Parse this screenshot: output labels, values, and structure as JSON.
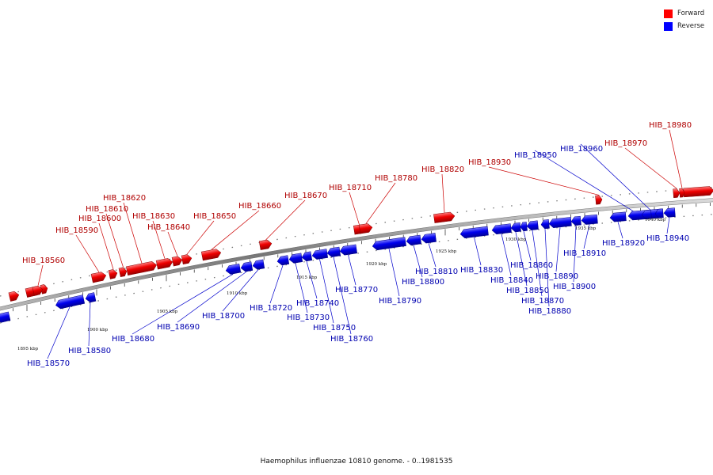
{
  "legend": [
    {
      "label": "Forward",
      "color": "#ff0000"
    },
    {
      "label": "Reverse",
      "color": "#0000ff"
    }
  ],
  "caption": "Haemophilus influenzae 10810 genome. - 0..1981535",
  "colors": {
    "forward": "#ff0000",
    "reverse": "#0000ff",
    "backbone": "#888888"
  },
  "ticks": [
    "1895 kbp",
    "1900 kbp",
    "1905 kbp",
    "1910 kbp",
    "1915 kbp",
    "1920 kbp",
    "1925 kbp",
    "1930 kbp",
    "1935 kbp",
    "1940 kbp"
  ],
  "genes": [
    {
      "label": "HIB_18560",
      "strand": "forward"
    },
    {
      "label": "HIB_18570",
      "strand": "reverse"
    },
    {
      "label": "HIB_18580",
      "strand": "reverse"
    },
    {
      "label": "HIB_18590",
      "strand": "forward"
    },
    {
      "label": "HIB_18600",
      "strand": "forward"
    },
    {
      "label": "HIB_18610",
      "strand": "forward"
    },
    {
      "label": "HIB_18620",
      "strand": "forward"
    },
    {
      "label": "HIB_18630",
      "strand": "forward"
    },
    {
      "label": "HIB_18640",
      "strand": "forward"
    },
    {
      "label": "HIB_18650",
      "strand": "forward"
    },
    {
      "label": "HIB_18660",
      "strand": "forward"
    },
    {
      "label": "HIB_18670",
      "strand": "forward"
    },
    {
      "label": "HIB_18680",
      "strand": "reverse"
    },
    {
      "label": "HIB_18690",
      "strand": "reverse"
    },
    {
      "label": "HIB_18700",
      "strand": "reverse"
    },
    {
      "label": "HIB_18710",
      "strand": "forward"
    },
    {
      "label": "HIB_18720",
      "strand": "reverse"
    },
    {
      "label": "HIB_18730",
      "strand": "reverse"
    },
    {
      "label": "HIB_18740",
      "strand": "reverse"
    },
    {
      "label": "HIB_18750",
      "strand": "reverse"
    },
    {
      "label": "HIB_18760",
      "strand": "reverse"
    },
    {
      "label": "HIB_18770",
      "strand": "reverse"
    },
    {
      "label": "HIB_18780",
      "strand": "forward"
    },
    {
      "label": "HIB_18790",
      "strand": "reverse"
    },
    {
      "label": "HIB_18800",
      "strand": "reverse"
    },
    {
      "label": "HIB_18810",
      "strand": "reverse"
    },
    {
      "label": "HIB_18820",
      "strand": "forward"
    },
    {
      "label": "HIB_18830",
      "strand": "reverse"
    },
    {
      "label": "HIB_18840",
      "strand": "reverse"
    },
    {
      "label": "HIB_18850",
      "strand": "reverse"
    },
    {
      "label": "HIB_18860",
      "strand": "reverse"
    },
    {
      "label": "HIB_18870",
      "strand": "reverse"
    },
    {
      "label": "HIB_18880",
      "strand": "reverse"
    },
    {
      "label": "HIB_18890",
      "strand": "reverse"
    },
    {
      "label": "HIB_18900",
      "strand": "reverse"
    },
    {
      "label": "HIB_18910",
      "strand": "reverse"
    },
    {
      "label": "HIB_18920",
      "strand": "reverse"
    },
    {
      "label": "HIB_18930",
      "strand": "forward"
    },
    {
      "label": "HIB_18940",
      "strand": "reverse"
    },
    {
      "label": "HIB_18950",
      "strand": "reverse"
    },
    {
      "label": "HIB_18960",
      "strand": "reverse"
    },
    {
      "label": "HIB_18970",
      "strand": "forward"
    },
    {
      "label": "HIB_18980",
      "strand": "forward"
    }
  ]
}
